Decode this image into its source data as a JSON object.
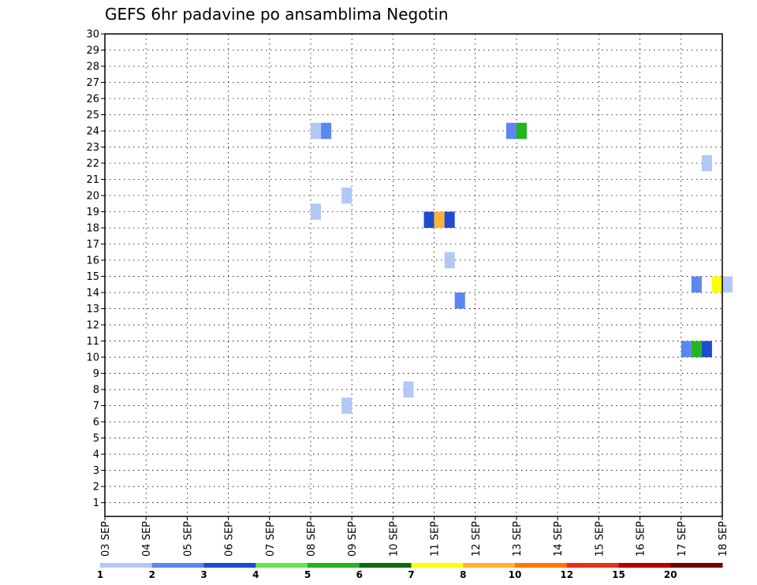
{
  "chart_data": {
    "type": "heatmap",
    "title": "GEFS 6hr padavine po ansamblima Negotin",
    "xlabel": "",
    "ylabel": "",
    "x_ticks": [
      "03 SEP",
      "04 SEP",
      "05 SEP",
      "06 SEP",
      "07 SEP",
      "08 SEP",
      "09 SEP",
      "10 SEP",
      "11 SEP",
      "12 SEP",
      "13 SEP",
      "14 SEP",
      "15 SEP",
      "16 SEP",
      "17 SEP",
      "18 SEP"
    ],
    "x_range_days": [
      3,
      18
    ],
    "y_ticks": [
      1,
      2,
      3,
      4,
      5,
      6,
      7,
      8,
      9,
      10,
      11,
      12,
      13,
      14,
      15,
      16,
      17,
      18,
      19,
      20,
      21,
      22,
      23,
      24,
      25,
      26,
      27,
      28,
      29,
      30
    ],
    "y_range": [
      0.15,
      30
    ],
    "grid": true,
    "colorbar": {
      "placement": "bottom",
      "labels": [
        "1",
        "2",
        "3",
        "4",
        "5",
        "6",
        "7",
        "8",
        "10",
        "12",
        "15",
        "20"
      ],
      "colors": [
        "#b4c8f5",
        "#5a87f0",
        "#1e4bd2",
        "#64e646",
        "#23b41e",
        "#0a6e0a",
        "#ffff00",
        "#ffb432",
        "#ff7800",
        "#e63214",
        "#b40000",
        "#780000"
      ]
    },
    "cells": [
      {
        "day": "08 SEP",
        "hour": 0,
        "member": 24,
        "value": 1.5
      },
      {
        "day": "08 SEP",
        "hour": 6,
        "member": 24,
        "value": 2.5
      },
      {
        "day": "08 SEP",
        "hour": 0,
        "member": 19,
        "value": 1.5
      },
      {
        "day": "08 SEP",
        "hour": 18,
        "member": 20,
        "value": 1.5
      },
      {
        "day": "08 SEP",
        "hour": 18,
        "member": 7,
        "value": 1.5
      },
      {
        "day": "10 SEP",
        "hour": 6,
        "member": 8,
        "value": 1.5
      },
      {
        "day": "10 SEP",
        "hour": 18,
        "member": 18.5,
        "value": 3.5
      },
      {
        "day": "11 SEP",
        "hour": 0,
        "member": 18.5,
        "value": 9
      },
      {
        "day": "11 SEP",
        "hour": 6,
        "member": 18.5,
        "value": 3.5
      },
      {
        "day": "11 SEP",
        "hour": 6,
        "member": 16,
        "value": 1.5
      },
      {
        "day": "11 SEP",
        "hour": 12,
        "member": 13.5,
        "value": 2.5
      },
      {
        "day": "12 SEP",
        "hour": 18,
        "member": 24,
        "value": 2.5
      },
      {
        "day": "13 SEP",
        "hour": 0,
        "member": 24,
        "value": 5.5
      },
      {
        "day": "17 SEP",
        "hour": 0,
        "member": 10.5,
        "value": 2.5
      },
      {
        "day": "17 SEP",
        "hour": 6,
        "member": 10.5,
        "value": 5.5
      },
      {
        "day": "17 SEP",
        "hour": 12,
        "member": 10.5,
        "value": 3.5
      },
      {
        "day": "17 SEP",
        "hour": 6,
        "member": 14.5,
        "value": 2.5
      },
      {
        "day": "17 SEP",
        "hour": 12,
        "member": 22,
        "value": 1.5
      },
      {
        "day": "17 SEP",
        "hour": 18,
        "member": 14.5,
        "value": 7.5
      },
      {
        "day": "18 SEP",
        "hour": 0,
        "member": 14.5,
        "value": 1.5
      }
    ]
  }
}
